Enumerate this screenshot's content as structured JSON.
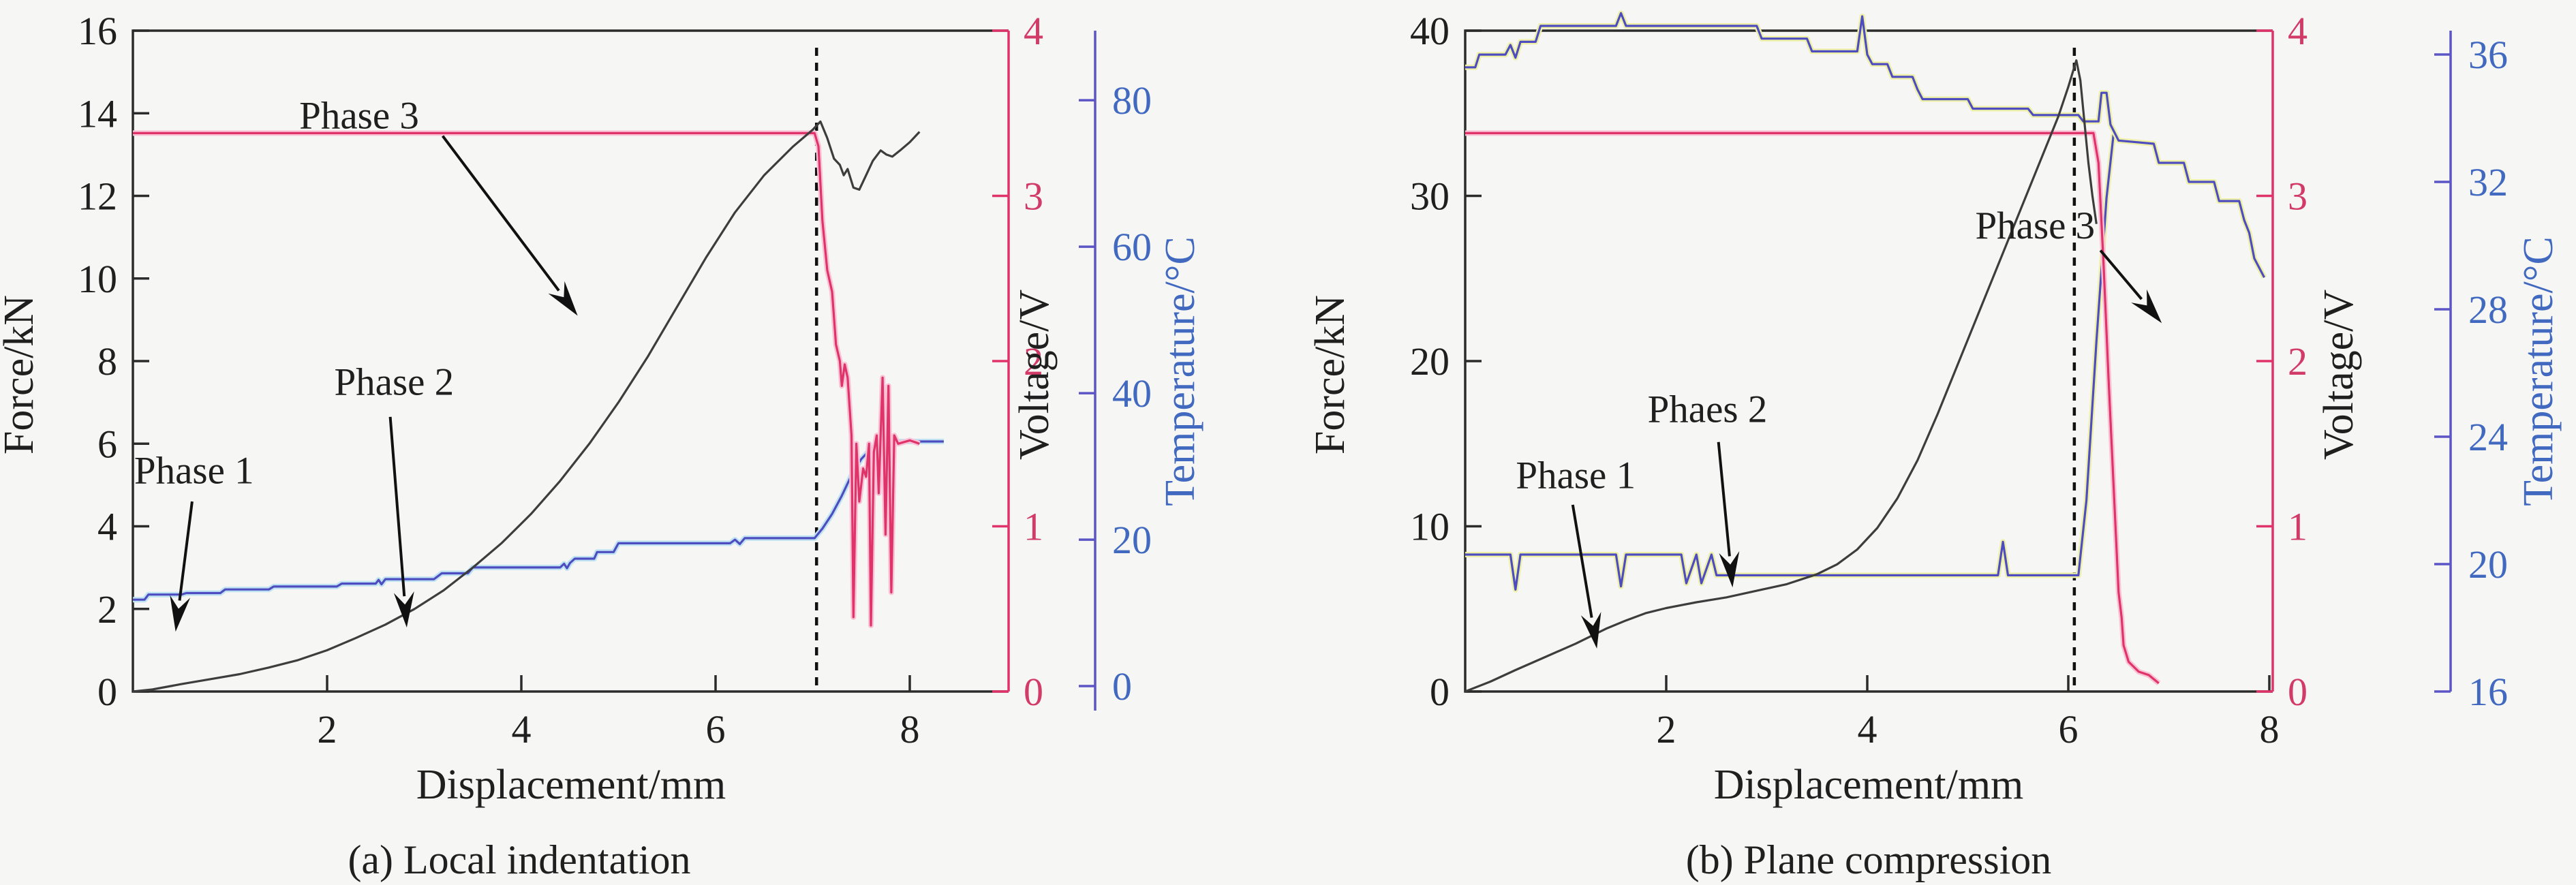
{
  "figure": {
    "background": "#f6f6f5",
    "colors": {
      "force": "#3d3d3d",
      "voltage": "#e0336a",
      "voltage_halo": "#f9c2d6",
      "temperature": "#4d4cc0",
      "temperature_halo": "#eef0a8",
      "temperature_halo2": "#bfe2f2",
      "axis_black": "#2b2b2b",
      "voltage_axis": "#e0336a",
      "temperature_axis": "#5b55c5",
      "voltage_text": "#d23a68",
      "temperature_text": "#4169c0",
      "black_text": "#1f1f1f",
      "dotted_line": "#111111"
    }
  },
  "chart_data": [
    {
      "id": "a",
      "type": "line",
      "caption": "(a) Local indentation",
      "xlabel": "Displacement/mm",
      "x_ticks": [
        2,
        4,
        6,
        8
      ],
      "dashed_line_x": 7.04,
      "axes": {
        "force": {
          "label": "Force/kN",
          "ticks": [
            0,
            2,
            4,
            6,
            8,
            10,
            12,
            14,
            16
          ],
          "v_bottom": 0,
          "v_top": 16
        },
        "voltage": {
          "label": "Voltage/V",
          "ticks": [
            0,
            1,
            2,
            3,
            4
          ],
          "v_bottom": 0,
          "v_top": 4
        },
        "temperature": {
          "label": "Temperature/°C",
          "ticks": [
            0,
            20,
            40,
            60,
            80
          ],
          "v_bottom": -0.74,
          "v_top": 89.5
        }
      },
      "annotations": [
        {
          "text": "Phase 1",
          "tx": 0.63,
          "ty": 5.35,
          "x1": 0.61,
          "y1": 4.6,
          "x2": 0.44,
          "y2": 1.45
        },
        {
          "text": "Phase 2",
          "tx": 2.69,
          "ty": 7.5,
          "x1": 2.65,
          "y1": 6.65,
          "x2": 2.82,
          "y2": 1.55
        },
        {
          "text": "Phase 3",
          "tx": 2.33,
          "ty": 13.95,
          "x1": 3.19,
          "y1": 13.45,
          "x2": 4.58,
          "y2": 9.1
        }
      ],
      "series": {
        "force": [
          [
            0,
            0
          ],
          [
            0.2,
            0.05
          ],
          [
            0.5,
            0.18
          ],
          [
            0.8,
            0.3
          ],
          [
            1.1,
            0.42
          ],
          [
            1.4,
            0.58
          ],
          [
            1.7,
            0.76
          ],
          [
            2.0,
            1.0
          ],
          [
            2.3,
            1.3
          ],
          [
            2.6,
            1.62
          ],
          [
            2.9,
            2.0
          ],
          [
            3.2,
            2.45
          ],
          [
            3.5,
            3.0
          ],
          [
            3.8,
            3.6
          ],
          [
            4.1,
            4.3
          ],
          [
            4.4,
            5.1
          ],
          [
            4.7,
            6.0
          ],
          [
            5.0,
            7.0
          ],
          [
            5.3,
            8.1
          ],
          [
            5.6,
            9.3
          ],
          [
            5.9,
            10.5
          ],
          [
            6.2,
            11.6
          ],
          [
            6.5,
            12.5
          ],
          [
            6.8,
            13.2
          ],
          [
            7.0,
            13.6
          ],
          [
            7.08,
            13.8
          ],
          [
            7.15,
            13.4
          ],
          [
            7.22,
            12.9
          ],
          [
            7.28,
            12.75
          ],
          [
            7.32,
            12.5
          ],
          [
            7.36,
            12.65
          ],
          [
            7.42,
            12.2
          ],
          [
            7.48,
            12.15
          ],
          [
            7.55,
            12.5
          ],
          [
            7.62,
            12.85
          ],
          [
            7.7,
            13.1
          ],
          [
            7.76,
            13.0
          ],
          [
            7.82,
            12.95
          ],
          [
            7.9,
            13.1
          ],
          [
            8.0,
            13.3
          ],
          [
            8.1,
            13.55
          ]
        ],
        "voltage": [
          [
            0,
            3.38
          ],
          [
            7.02,
            3.38
          ],
          [
            7.06,
            3.3
          ],
          [
            7.1,
            2.85
          ],
          [
            7.15,
            2.55
          ],
          [
            7.2,
            2.42
          ],
          [
            7.24,
            2.1
          ],
          [
            7.28,
            2.0
          ],
          [
            7.3,
            1.85
          ],
          [
            7.33,
            1.98
          ],
          [
            7.36,
            1.9
          ],
          [
            7.4,
            1.55
          ],
          [
            7.42,
            0.45
          ],
          [
            7.45,
            1.5
          ],
          [
            7.48,
            1.15
          ],
          [
            7.52,
            1.35
          ],
          [
            7.55,
            1.3
          ],
          [
            7.58,
            1.5
          ],
          [
            7.6,
            0.4
          ],
          [
            7.63,
            1.45
          ],
          [
            7.66,
            1.55
          ],
          [
            7.68,
            1.2
          ],
          [
            7.72,
            1.9
          ],
          [
            7.75,
            0.95
          ],
          [
            7.78,
            1.85
          ],
          [
            7.81,
            0.6
          ],
          [
            7.84,
            1.55
          ],
          [
            7.88,
            1.5
          ],
          [
            8.0,
            1.52
          ],
          [
            8.1,
            1.5
          ]
        ],
        "temperature": [
          [
            0,
            11.8
          ],
          [
            0.12,
            11.8
          ],
          [
            0.16,
            12.5
          ],
          [
            0.5,
            12.5
          ],
          [
            0.55,
            12.7
          ],
          [
            0.9,
            12.7
          ],
          [
            0.95,
            13.2
          ],
          [
            1.4,
            13.2
          ],
          [
            1.45,
            13.6
          ],
          [
            2.1,
            13.6
          ],
          [
            2.15,
            14.0
          ],
          [
            2.5,
            14.0
          ],
          [
            2.53,
            14.5
          ],
          [
            2.56,
            13.9
          ],
          [
            2.6,
            14.6
          ],
          [
            3.1,
            14.6
          ],
          [
            3.18,
            15.4
          ],
          [
            3.45,
            15.4
          ],
          [
            3.5,
            16.2
          ],
          [
            4.4,
            16.2
          ],
          [
            4.44,
            16.7
          ],
          [
            4.47,
            16.1
          ],
          [
            4.5,
            16.8
          ],
          [
            4.55,
            17.4
          ],
          [
            4.75,
            17.4
          ],
          [
            4.78,
            18.3
          ],
          [
            4.95,
            18.3
          ],
          [
            5.0,
            19.5
          ],
          [
            6.15,
            19.5
          ],
          [
            6.2,
            20.0
          ],
          [
            6.25,
            19.4
          ],
          [
            6.3,
            20.2
          ],
          [
            7.02,
            20.2
          ],
          [
            7.1,
            21.5
          ],
          [
            7.2,
            23.5
          ],
          [
            7.3,
            26.0
          ],
          [
            7.4,
            28.8
          ],
          [
            7.5,
            31.0
          ],
          [
            7.6,
            32.4
          ],
          [
            7.7,
            33.2
          ],
          [
            7.8,
            33.4
          ],
          [
            8.35,
            33.4
          ]
        ]
      }
    },
    {
      "id": "b",
      "type": "line",
      "caption": "(b) Plane compression",
      "xlabel": "Displacement/mm",
      "x_ticks": [
        2,
        4,
        6,
        8
      ],
      "dashed_line_x": 6.06,
      "axes": {
        "force": {
          "label": "Force/kN",
          "ticks": [
            0,
            10,
            20,
            30,
            40
          ],
          "v_bottom": 0,
          "v_top": 40
        },
        "voltage": {
          "label": "Voltage/V",
          "ticks": [
            0,
            1,
            2,
            3,
            4
          ],
          "v_bottom": 0,
          "v_top": 4
        },
        "temperature": {
          "label": "Temperature/°C",
          "ticks": [
            16,
            20,
            24,
            28,
            32,
            36
          ],
          "v_bottom": 16,
          "v_top": 36.75
        }
      },
      "annotations": [
        {
          "text": "Phase 1",
          "tx": 1.1,
          "ty": 13.1,
          "x1": 1.07,
          "y1": 11.3,
          "x2": 1.31,
          "y2": 2.6
        },
        {
          "text": "Phaes 2",
          "tx": 2.41,
          "ty": 17.1,
          "x1": 2.52,
          "y1": 15.1,
          "x2": 2.66,
          "y2": 6.3
        },
        {
          "text": "Phase 3",
          "tx": 5.67,
          "ty": 28.2,
          "x1": 6.32,
          "y1": 26.7,
          "x2": 6.93,
          "y2": 22.3
        }
      ],
      "series": {
        "force": [
          [
            0,
            0
          ],
          [
            0.25,
            0.6
          ],
          [
            0.5,
            1.3
          ],
          [
            0.8,
            2.1
          ],
          [
            1.1,
            2.9
          ],
          [
            1.4,
            3.8
          ],
          [
            1.6,
            4.3
          ],
          [
            1.8,
            4.75
          ],
          [
            2.0,
            5.05
          ],
          [
            2.3,
            5.4
          ],
          [
            2.6,
            5.7
          ],
          [
            2.9,
            6.1
          ],
          [
            3.2,
            6.5
          ],
          [
            3.5,
            7.1
          ],
          [
            3.7,
            7.7
          ],
          [
            3.9,
            8.6
          ],
          [
            4.1,
            9.9
          ],
          [
            4.3,
            11.7
          ],
          [
            4.5,
            14.0
          ],
          [
            4.7,
            16.8
          ],
          [
            4.9,
            19.8
          ],
          [
            5.1,
            22.8
          ],
          [
            5.3,
            25.8
          ],
          [
            5.5,
            28.8
          ],
          [
            5.7,
            31.8
          ],
          [
            5.9,
            34.8
          ],
          [
            6.0,
            36.6
          ],
          [
            6.08,
            38.2
          ],
          [
            6.12,
            37.0
          ],
          [
            6.16,
            34.5
          ],
          [
            6.2,
            32.0
          ],
          [
            6.24,
            30.0
          ],
          [
            6.28,
            28.3
          ]
        ],
        "voltage": [
          [
            0,
            3.38
          ],
          [
            6.25,
            3.38
          ],
          [
            6.3,
            3.2
          ],
          [
            6.35,
            2.6
          ],
          [
            6.4,
            1.9
          ],
          [
            6.45,
            1.25
          ],
          [
            6.5,
            0.6
          ],
          [
            6.53,
            0.45
          ],
          [
            6.55,
            0.28
          ],
          [
            6.6,
            0.18
          ],
          [
            6.7,
            0.12
          ],
          [
            6.8,
            0.1
          ],
          [
            6.9,
            0.05
          ]
        ],
        "temperature": [
          [
            0,
            35.6
          ],
          [
            0.1,
            35.6
          ],
          [
            0.14,
            36.0
          ],
          [
            0.4,
            36.0
          ],
          [
            0.45,
            36.3
          ],
          [
            0.5,
            35.9
          ],
          [
            0.55,
            36.4
          ],
          [
            0.7,
            36.4
          ],
          [
            0.75,
            36.9
          ],
          [
            1.5,
            36.9
          ],
          [
            1.55,
            37.3
          ],
          [
            1.6,
            36.9
          ],
          [
            2.9,
            36.9
          ],
          [
            2.95,
            36.5
          ],
          [
            3.4,
            36.5
          ],
          [
            3.45,
            36.1
          ],
          [
            3.9,
            36.1
          ],
          [
            3.95,
            37.2
          ],
          [
            4.0,
            36.0
          ],
          [
            4.05,
            35.7
          ],
          [
            4.2,
            35.7
          ],
          [
            4.25,
            35.3
          ],
          [
            4.45,
            35.3
          ],
          [
            4.5,
            34.9
          ],
          [
            4.55,
            34.6
          ],
          [
            5.0,
            34.6
          ],
          [
            5.05,
            34.3
          ],
          [
            5.6,
            34.3
          ],
          [
            5.65,
            34.1
          ],
          [
            6.1,
            34.1
          ],
          [
            6.15,
            33.9
          ],
          [
            6.3,
            33.9
          ],
          [
            6.33,
            34.8
          ],
          [
            6.38,
            34.8
          ],
          [
            6.42,
            33.8
          ],
          [
            6.5,
            33.3
          ],
          [
            6.85,
            33.2
          ],
          [
            6.9,
            32.6
          ],
          [
            7.15,
            32.6
          ],
          [
            7.2,
            32.0
          ],
          [
            7.45,
            32.0
          ],
          [
            7.5,
            31.4
          ],
          [
            7.7,
            31.4
          ],
          [
            7.75,
            30.8
          ],
          [
            7.8,
            30.4
          ],
          [
            7.85,
            29.6
          ],
          [
            7.95,
            29.0
          ]
        ],
        "temperature2": [
          [
            0,
            20.3
          ],
          [
            0.45,
            20.3
          ],
          [
            0.5,
            19.2
          ],
          [
            0.55,
            20.3
          ],
          [
            1.5,
            20.3
          ],
          [
            1.55,
            19.3
          ],
          [
            1.6,
            20.3
          ],
          [
            2.15,
            20.3
          ],
          [
            2.2,
            19.4
          ],
          [
            2.3,
            20.3
          ],
          [
            2.35,
            19.4
          ],
          [
            2.45,
            20.3
          ],
          [
            2.5,
            19.65
          ],
          [
            5.3,
            19.65
          ],
          [
            5.35,
            20.7
          ],
          [
            5.4,
            19.65
          ],
          [
            6.1,
            19.65
          ],
          [
            6.18,
            22.0
          ],
          [
            6.28,
            27.0
          ],
          [
            6.38,
            31.5
          ],
          [
            6.45,
            33.5
          ]
        ]
      }
    }
  ]
}
